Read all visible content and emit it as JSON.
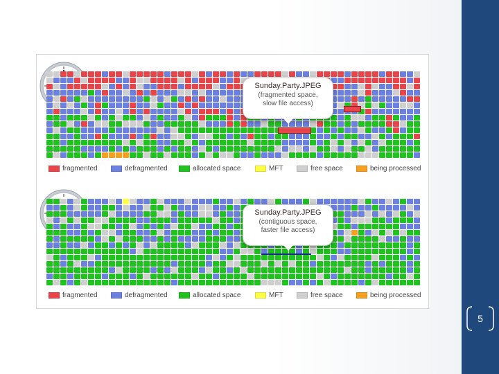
{
  "slide": {
    "page_number": "5"
  },
  "colors": {
    "fragmented": "#e8454b",
    "defragmented": "#6c80e0",
    "allocated": "#1fc21f",
    "mft": "#ffff44",
    "free": "#cfcfcf",
    "processing": "#f5a020",
    "sidebar": "#1f497d"
  },
  "legend": [
    {
      "label": "fragmented",
      "color": "#e8454b"
    },
    {
      "label": "defragmented",
      "color": "#6c80e0"
    },
    {
      "label": "allocated space",
      "color": "#1fc21f"
    },
    {
      "label": "MFT",
      "color": "#ffff44"
    },
    {
      "label": "free space",
      "color": "#cfcfcf"
    },
    {
      "label": "being processed",
      "color": "#f5a020"
    }
  ],
  "top": {
    "callout_title": "Sunday.Party.JPEG",
    "callout_line1": "(fragmented space,",
    "callout_line2": "slow file access)",
    "clock_icon": "clock-icon"
  },
  "bottom": {
    "callout_title": "Sunday.Party.JPEG",
    "callout_line1": "(contiguous space,",
    "callout_line2": "faster file access)",
    "clock_icon": "clock-icon"
  }
}
